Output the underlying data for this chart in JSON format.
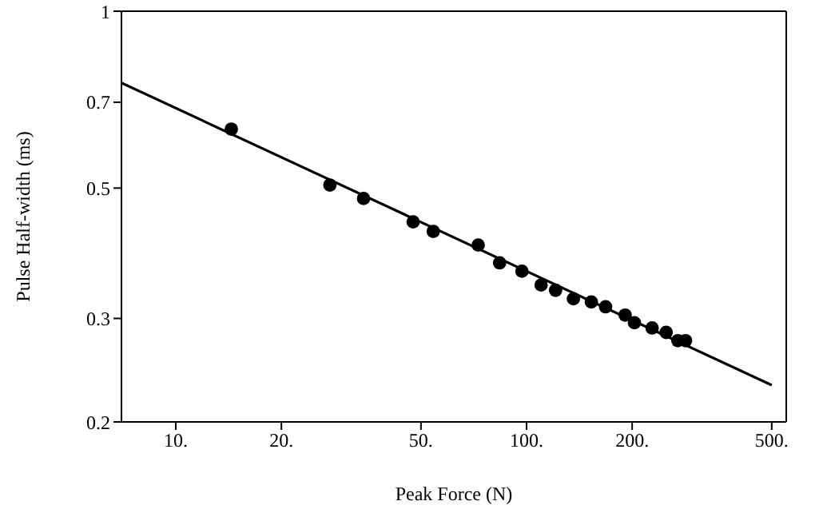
{
  "chart_data": {
    "type": "scatter",
    "xlabel": "Peak Force (N)",
    "ylabel": "Pulse Half-width (ms)",
    "log": "xy",
    "marker": "circle",
    "xlim": [
      7,
      550
    ],
    "xticks": [
      {
        "value": 10,
        "label": "10."
      },
      {
        "value": 20,
        "label": "20."
      },
      {
        "value": 50,
        "label": "50."
      },
      {
        "value": 100,
        "label": "100."
      },
      {
        "value": 200,
        "label": "200."
      },
      {
        "value": 500,
        "label": "500."
      }
    ],
    "ylim": [
      0.2,
      1
    ],
    "yticks": [
      0.2,
      0.3,
      0.5,
      0.7,
      1
    ],
    "series": [
      {
        "color": "#000000",
        "x": [
          14.4,
          27.5,
          34.3,
          47.5,
          54.2,
          72.8,
          83.8,
          97,
          110,
          121,
          136,
          153,
          168,
          191,
          203,
          228,
          250,
          270,
          284
        ],
        "values": [
          0.63,
          0.506,
          0.48,
          0.438,
          0.422,
          0.4,
          0.373,
          0.361,
          0.342,
          0.335,
          0.324,
          0.32,
          0.314,
          0.304,
          0.295,
          0.289,
          0.284,
          0.275,
          0.275
        ]
      },
      {
        "type": "line",
        "color": "#000000",
        "line_style": "solid",
        "marker": "none",
        "x": [
          7,
          500
        ],
        "values": [
          0.755,
          0.231
        ]
      }
    ]
  }
}
